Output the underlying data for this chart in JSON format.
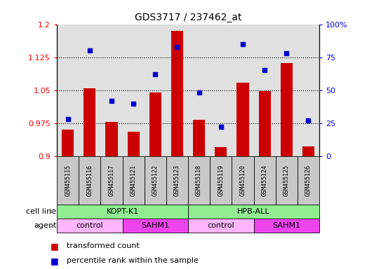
{
  "title": "GDS3717 / 237462_at",
  "samples": [
    "GSM455115",
    "GSM455116",
    "GSM455117",
    "GSM455121",
    "GSM455122",
    "GSM455123",
    "GSM455118",
    "GSM455119",
    "GSM455120",
    "GSM455124",
    "GSM455125",
    "GSM455126"
  ],
  "bar_values": [
    0.96,
    1.054,
    0.978,
    0.955,
    1.045,
    1.185,
    0.982,
    0.92,
    1.067,
    1.048,
    1.112,
    0.922
  ],
  "dot_values": [
    28,
    80,
    42,
    40,
    62,
    83,
    48,
    22,
    85,
    65,
    78,
    27
  ],
  "bar_base": 0.9,
  "ylim_left": [
    0.9,
    1.2
  ],
  "ylim_right": [
    0,
    100
  ],
  "yticks_left": [
    0.9,
    0.975,
    1.05,
    1.125,
    1.2
  ],
  "ytick_labels_left": [
    "0.9",
    "0.975",
    "1.05",
    "1.125",
    "1.2"
  ],
  "yticks_right": [
    0,
    25,
    50,
    75,
    100
  ],
  "ytick_labels_right": [
    "0",
    "25",
    "50",
    "75",
    "100%"
  ],
  "hlines": [
    0.975,
    1.05,
    1.125
  ],
  "bar_color": "#cc0000",
  "dot_color": "#0000cc",
  "cell_line_color": "#90ee90",
  "agent_control_color": "#ffb6ff",
  "agent_sahm1_color": "#ee44ee",
  "cell_lines": [
    {
      "label": "KOPT-K1",
      "start": 0,
      "end": 6
    },
    {
      "label": "HPB-ALL",
      "start": 6,
      "end": 12
    }
  ],
  "agents": [
    {
      "label": "control",
      "start": 0,
      "end": 3
    },
    {
      "label": "SAHM1",
      "start": 3,
      "end": 6
    },
    {
      "label": "control",
      "start": 6,
      "end": 9
    },
    {
      "label": "SAHM1",
      "start": 9,
      "end": 12
    }
  ],
  "legend_bar_label": "transformed count",
  "legend_dot_label": "percentile rank within the sample",
  "xlabel_cell_line": "cell line",
  "xlabel_agent": "agent",
  "plot_bg_color": "#e0e0e0",
  "tick_box_color": "#c8c8c8"
}
